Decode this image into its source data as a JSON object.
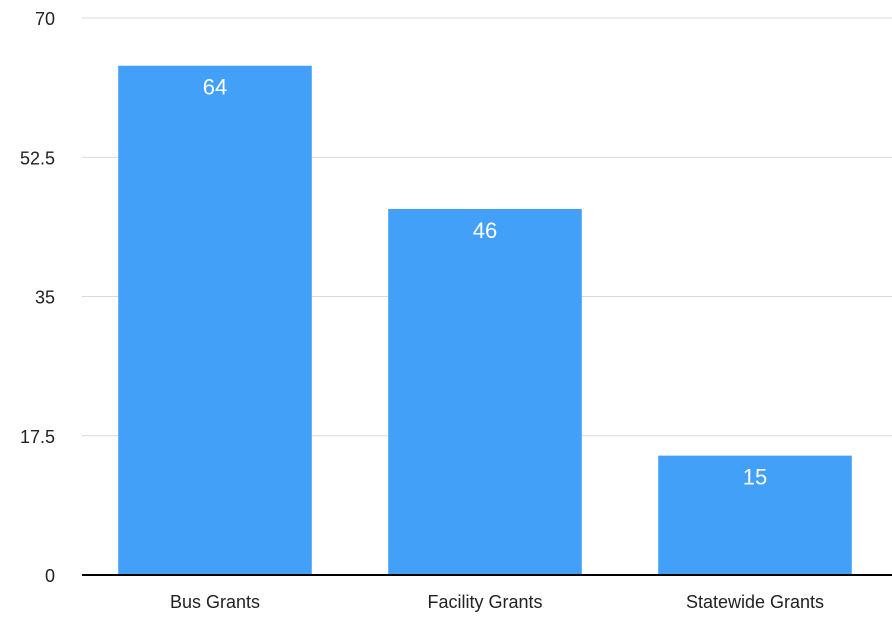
{
  "chart_data": {
    "type": "bar",
    "categories": [
      "Bus Grants",
      "Facility Grants",
      "Statewide Grants"
    ],
    "values": [
      64,
      46,
      15
    ],
    "data_labels": [
      "64",
      "46",
      "15"
    ],
    "ylim": [
      0,
      70
    ],
    "yticks": [
      0,
      17.5,
      35,
      52.5,
      70
    ],
    "ytick_labels": [
      "0",
      "17.5",
      "35",
      "52.5",
      "70"
    ],
    "title": "",
    "xlabel": "",
    "ylabel": "",
    "grid": true,
    "legend": "none",
    "colors": {
      "bar": "#42A0F8",
      "grid": "#D9D9D9",
      "axis": "#000000",
      "label": "#222222",
      "data_label": "#FFFFFF"
    }
  }
}
